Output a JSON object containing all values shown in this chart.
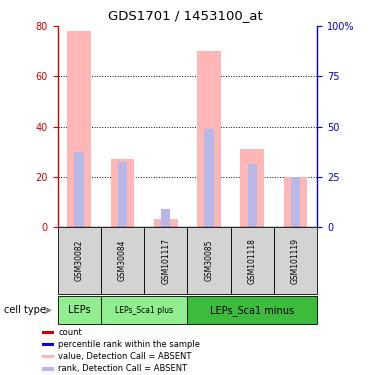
{
  "title": "GDS1701 / 1453100_at",
  "samples": [
    "GSM30082",
    "GSM30084",
    "GSM101117",
    "GSM30085",
    "GSM101118",
    "GSM101119"
  ],
  "pink_bars": [
    78,
    27,
    3,
    70,
    31,
    20
  ],
  "blue_bars": [
    30,
    26,
    7,
    39,
    25,
    20
  ],
  "ylim_left": [
    0,
    80
  ],
  "ylim_right": [
    0,
    100
  ],
  "yticks_left": [
    0,
    20,
    40,
    60,
    80
  ],
  "yticks_right": [
    0,
    25,
    50,
    75,
    100
  ],
  "ytick_labels_right": [
    "0",
    "25",
    "50",
    "75",
    "100%"
  ],
  "cell_type_label": "cell type",
  "groups": [
    {
      "label": "LEPs",
      "cols": [
        0
      ],
      "color": "#90ee90",
      "fontsize": 7
    },
    {
      "label": "LEPs_Sca1 plus",
      "cols": [
        1,
        2
      ],
      "color": "#90ee90",
      "fontsize": 5.5
    },
    {
      "label": "LEPs_Sca1 minus",
      "cols": [
        3,
        4,
        5
      ],
      "color": "#3dbb3d",
      "fontsize": 7
    }
  ],
  "legend_items": [
    {
      "color": "#cc0000",
      "label": "count"
    },
    {
      "color": "#0000cc",
      "label": "percentile rank within the sample"
    },
    {
      "color": "#ffb6b6",
      "label": "value, Detection Call = ABSENT"
    },
    {
      "color": "#b8b8e8",
      "label": "rank, Detection Call = ABSENT"
    }
  ],
  "pink_color": "#ffb6b6",
  "blue_color": "#b8b8e8",
  "tick_color_left": "#cc0000",
  "tick_color_right": "#0000cc",
  "background_color": "#ffffff",
  "pink_bar_width": 0.55,
  "blue_bar_width": 0.22
}
